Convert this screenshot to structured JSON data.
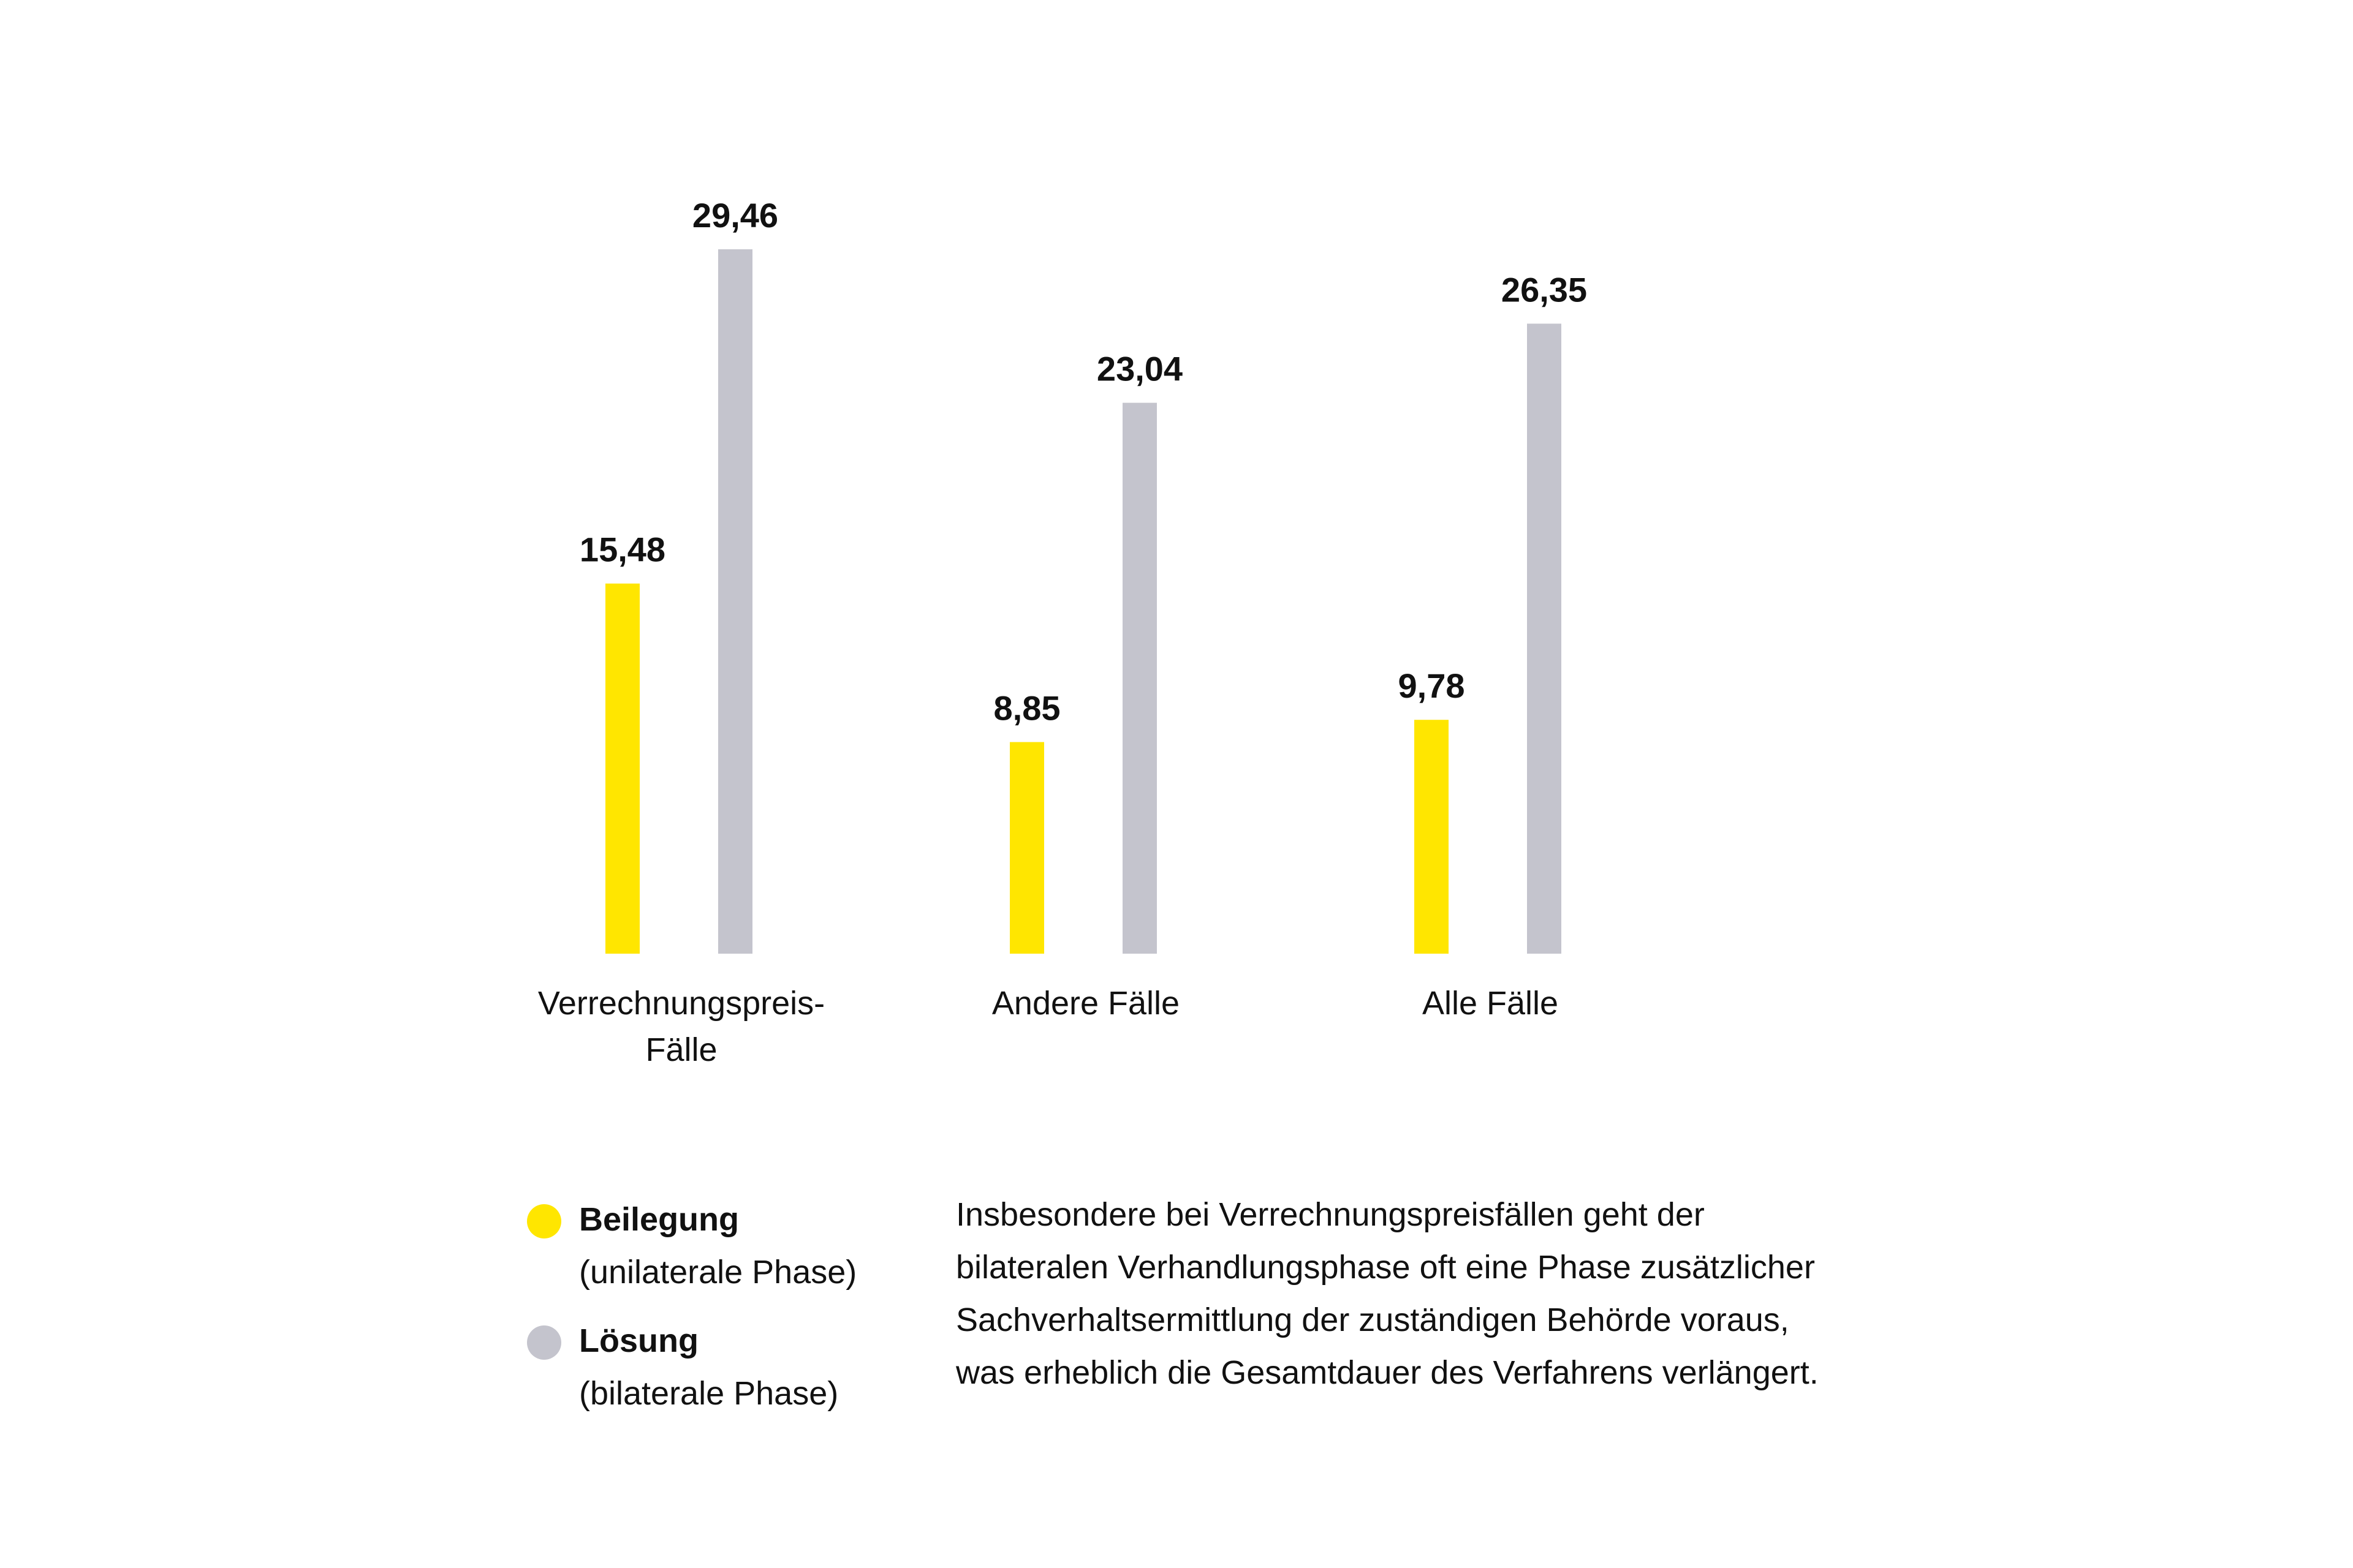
{
  "chart_data": {
    "type": "bar",
    "categories": [
      "Verrechnungspreis-\nFälle",
      "Andere Fälle",
      "Alle Fälle"
    ],
    "series": [
      {
        "name": "Beilegung",
        "color": "#FFE600",
        "values": [
          15.48,
          8.85,
          9.78
        ],
        "labels": [
          "15,48",
          "8,85",
          "9,78"
        ]
      },
      {
        "name": "Lösung",
        "color": "#C4C4CD",
        "values": [
          29.46,
          23.04,
          26.35
        ],
        "labels": [
          "29,46",
          "23,04",
          "26,35"
        ]
      }
    ],
    "ylim": [
      0,
      29.46
    ],
    "grid": false,
    "legend_position": "bottom-left"
  },
  "legend": {
    "items": [
      {
        "name": "Beilegung",
        "sub": "(unilaterale Phase)",
        "color": "#FFE600"
      },
      {
        "name": "Lösung",
        "sub": "(bilaterale Phase)",
        "color": "#C4C4CD"
      }
    ]
  },
  "note": "Insbesondere bei Verrechnungspreisfällen geht der\nbilateralen Verhandlungsphase oft eine Phase zusätzlicher\nSachverhaltsermittlung der zuständigen Behörde voraus,\nwas erheblich die Gesamtdauer des Verfahrens verlängert."
}
